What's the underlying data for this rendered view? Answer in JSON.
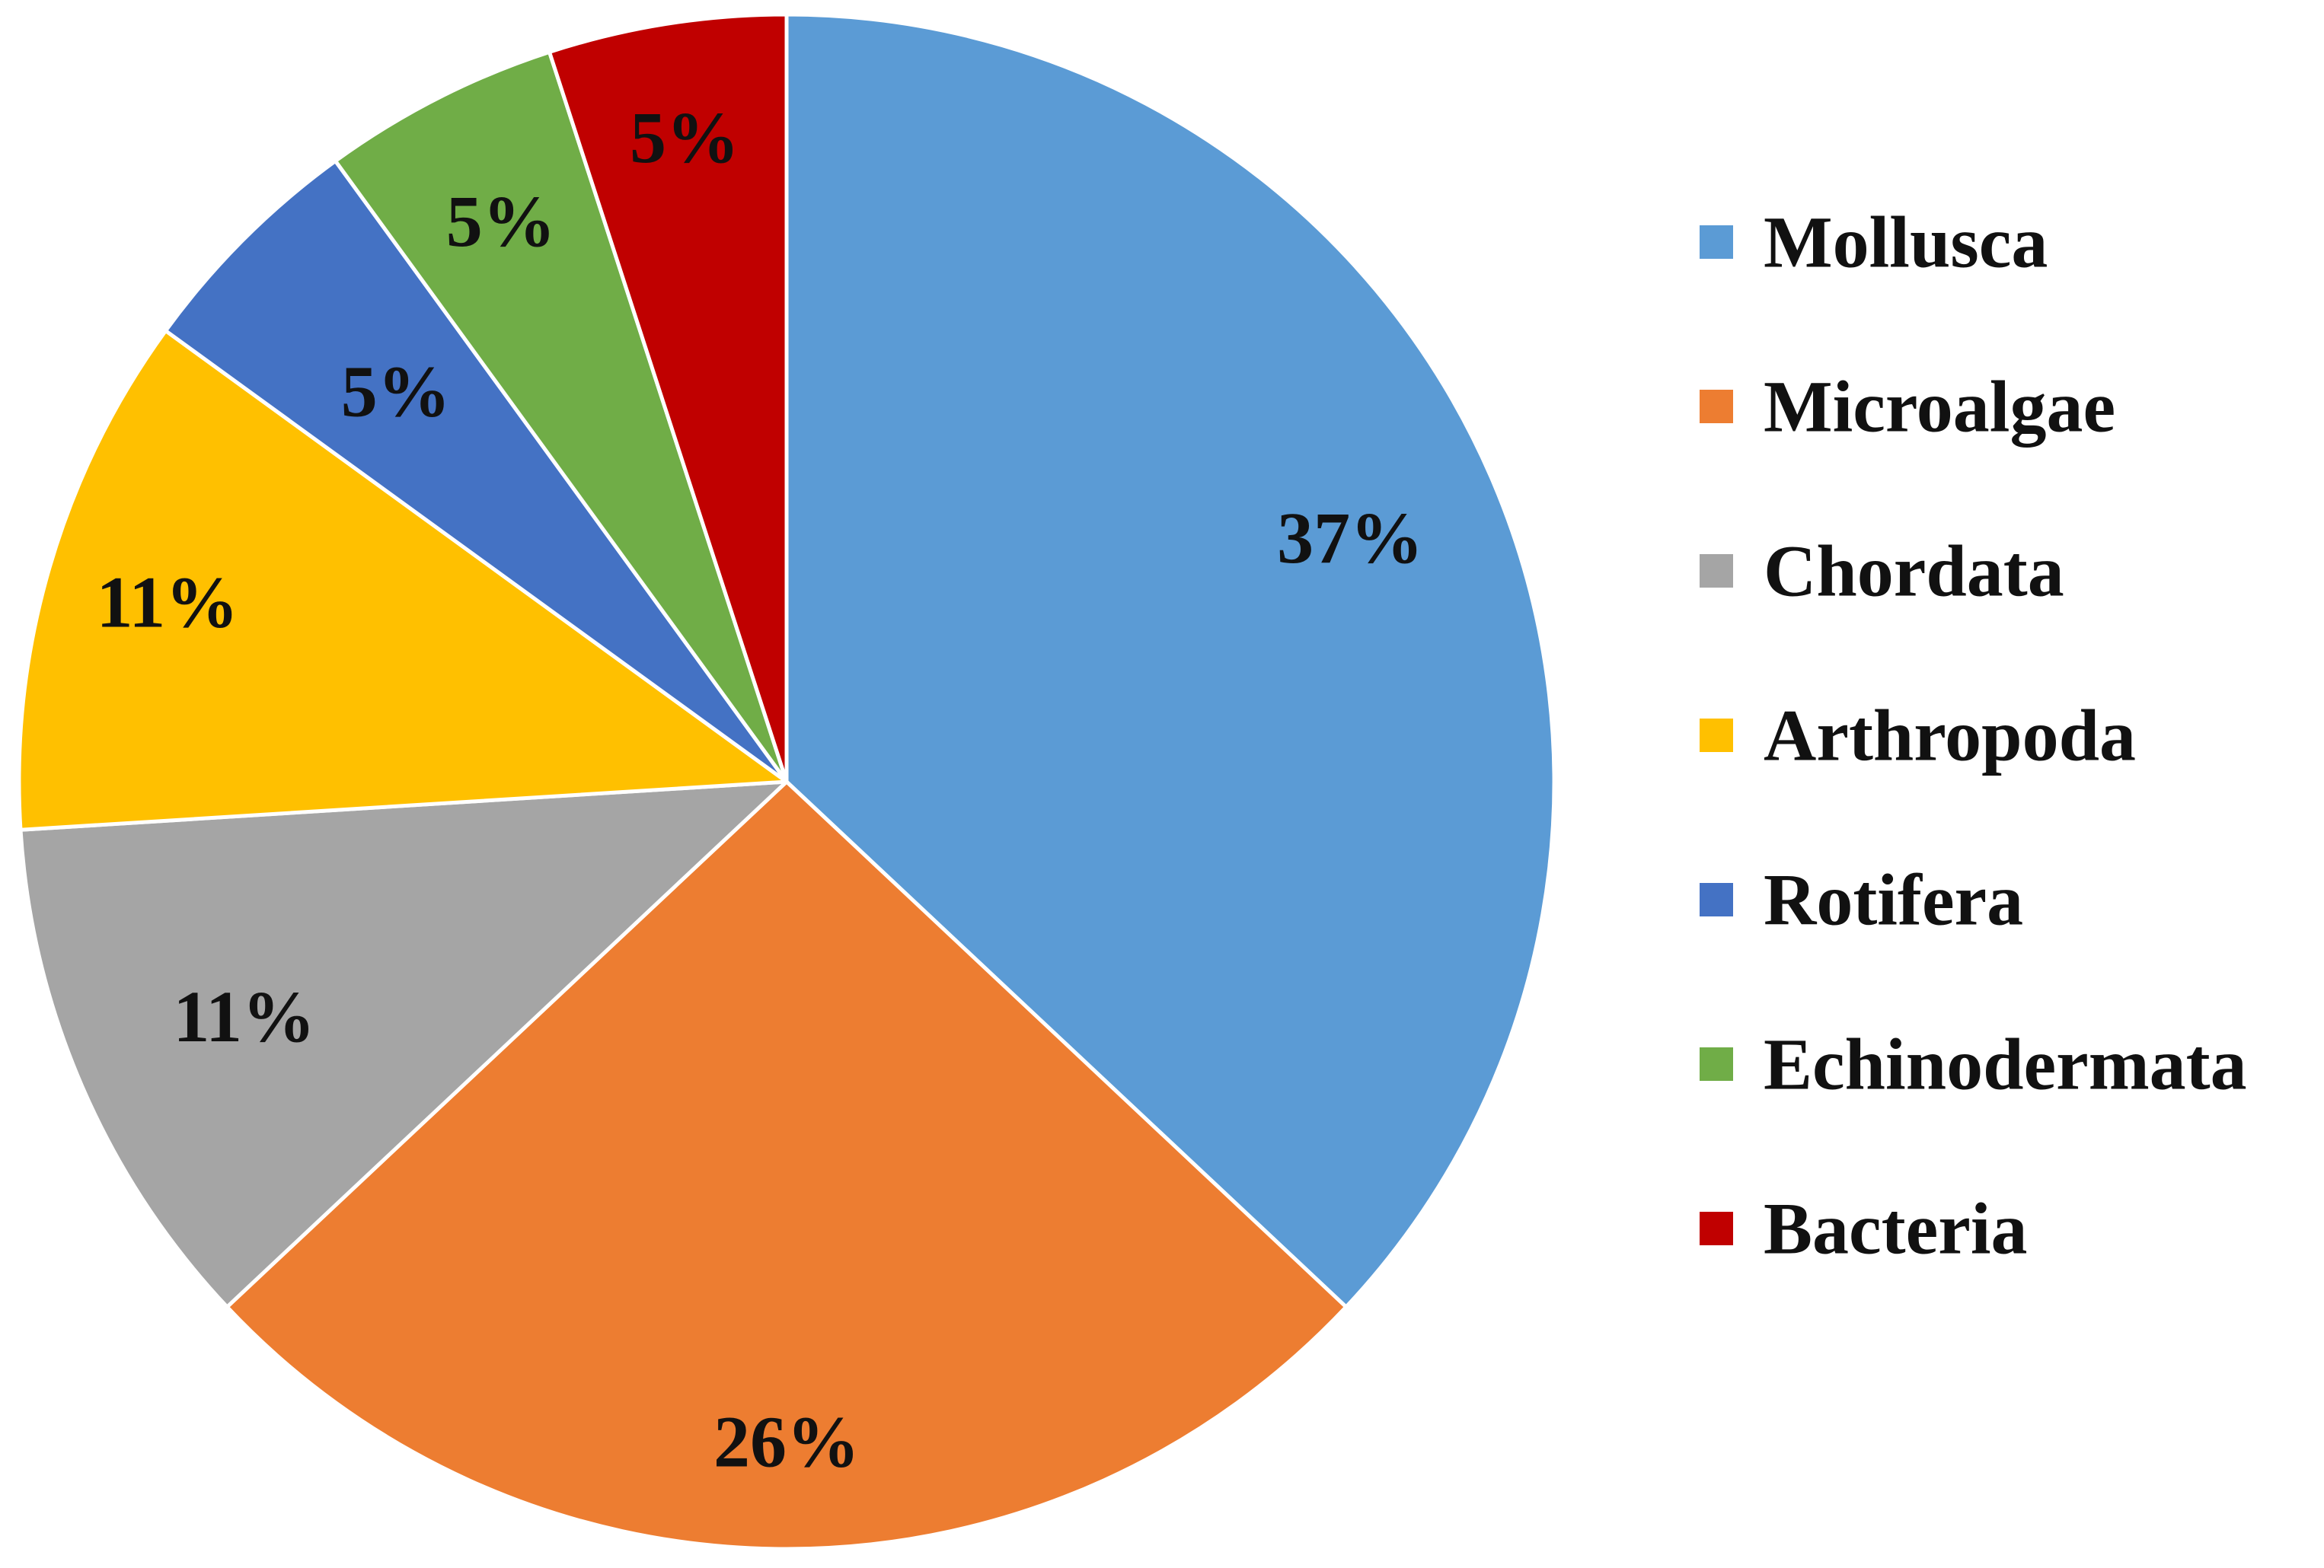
{
  "chart_data": {
    "type": "pie",
    "title": "",
    "start_angle_deg": 0,
    "direction": "clockwise",
    "legend_position": "right",
    "slices": [
      {
        "name": "Mollusca",
        "value": 37,
        "label": "37%",
        "color": "#5B9BD5"
      },
      {
        "name": "Microalgae",
        "value": 26,
        "label": "26%",
        "color": "#ED7D31"
      },
      {
        "name": "Chordata",
        "value": 11,
        "label": "11%",
        "color": "#A5A5A5"
      },
      {
        "name": "Arthropoda",
        "value": 11,
        "label": "11%",
        "color": "#FFC000"
      },
      {
        "name": "Rotifera",
        "value": 5,
        "label": "5%",
        "color": "#4472C4"
      },
      {
        "name": "Echinodermata",
        "value": 5,
        "label": "5%",
        "color": "#70AD47"
      },
      {
        "name": "Bacteria",
        "value": 5,
        "label": "5%",
        "color": "#C00000"
      }
    ]
  }
}
